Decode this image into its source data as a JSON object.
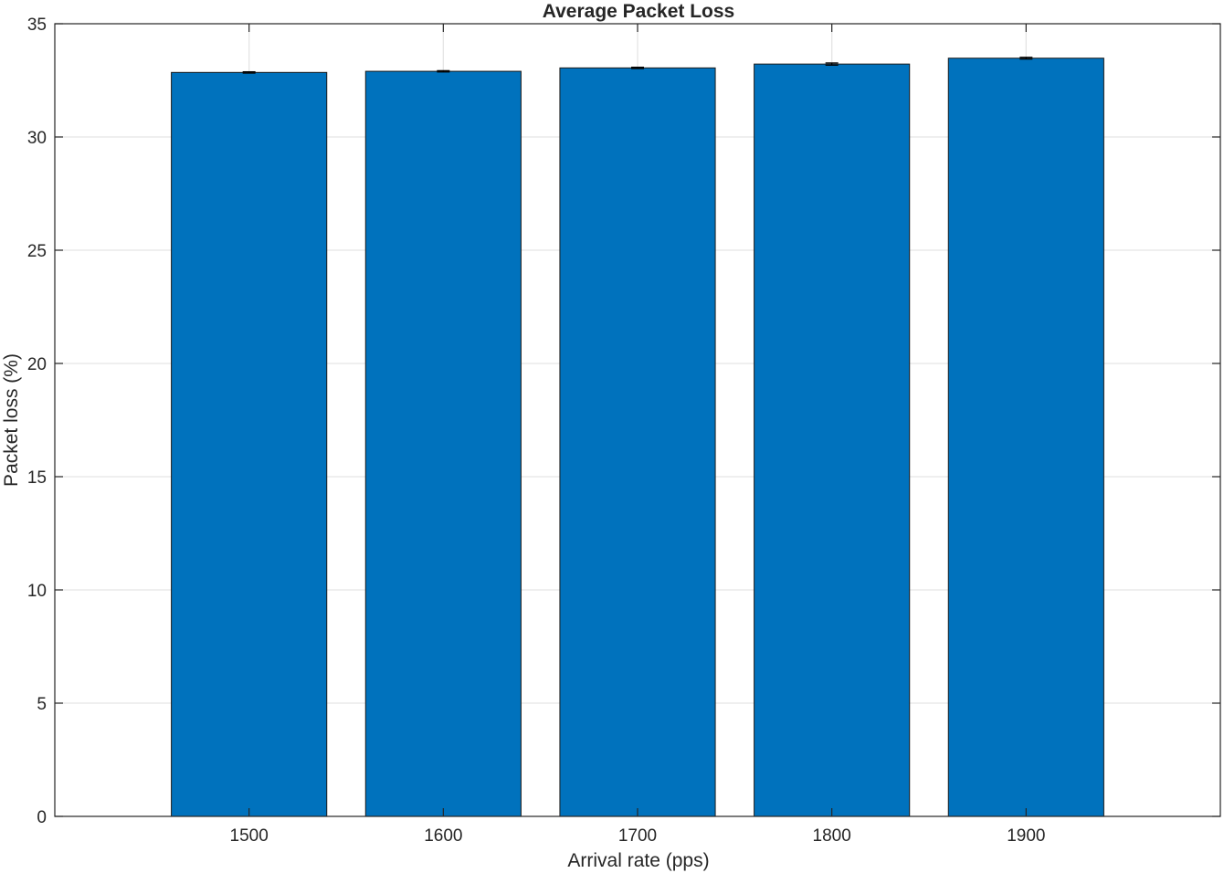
{
  "chart_data": {
    "type": "bar",
    "title": "Average Packet Loss",
    "xlabel": "Arrival rate (pps)",
    "ylabel": "Packet loss (%)",
    "categories": [
      "1500",
      "1600",
      "1700",
      "1800",
      "1900"
    ],
    "x": [
      1500,
      1600,
      1700,
      1800,
      1900
    ],
    "xlim": [
      1400,
      2000
    ],
    "values": [
      32.85,
      32.9,
      33.05,
      33.22,
      33.48
    ],
    "errors": [
      0.03,
      0.03,
      0.03,
      0.05,
      0.04
    ],
    "ylim": [
      0,
      35
    ],
    "yticks": [
      0,
      5,
      10,
      15,
      20,
      25,
      30,
      35
    ],
    "ytick_labels": [
      "0",
      "5",
      "10",
      "15",
      "20",
      "25",
      "30",
      "35"
    ],
    "grid": true,
    "colors": {
      "bar": "#0072bd",
      "bar_edge": "#1a1a1a",
      "grid": "#e5e5e5",
      "axis": "#262626",
      "error_bar": "#000000",
      "background": "#ffffff"
    }
  }
}
